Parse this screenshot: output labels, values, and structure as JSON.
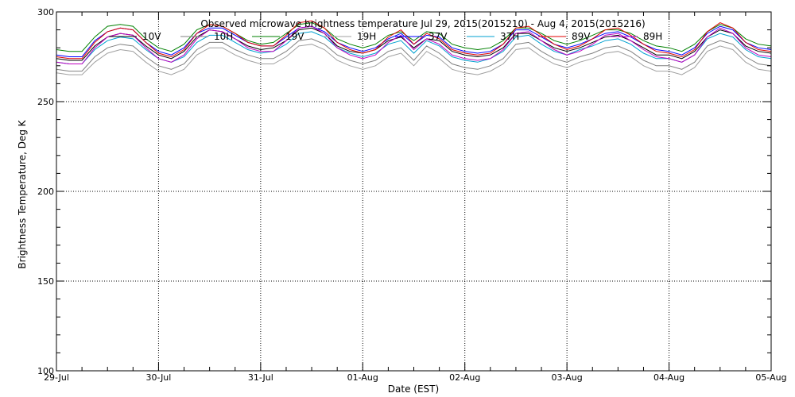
{
  "chart_data": {
    "type": "line",
    "title": "Observed microwave brightness temperature Jul 29, 2015(2015210) - Aug  4, 2015(2015216)",
    "xlabel": "Date (EST)",
    "ylabel": "Brightness Temperature, Deg K",
    "xlim": [
      0,
      7
    ],
    "ylim": [
      100,
      300
    ],
    "x_tick_labels": [
      "29-Jul",
      "30-Jul",
      "31-Jul",
      "01-Aug",
      "02-Aug",
      "03-Aug",
      "04-Aug",
      "05-Aug"
    ],
    "y_ticks": [
      100,
      150,
      200,
      250,
      300
    ],
    "grid": true,
    "legend_position": "top",
    "x": [
      0,
      0.125,
      0.25,
      0.375,
      0.5,
      0.625,
      0.75,
      0.875,
      1.0,
      1.125,
      1.25,
      1.375,
      1.5,
      1.625,
      1.75,
      1.875,
      2.0,
      2.125,
      2.25,
      2.375,
      2.5,
      2.625,
      2.75,
      2.875,
      3.0,
      3.125,
      3.25,
      3.375,
      3.5,
      3.625,
      3.75,
      3.875,
      4.0,
      4.125,
      4.25,
      4.375,
      4.5,
      4.625,
      4.75,
      4.875,
      5.0,
      5.125,
      5.25,
      5.375,
      5.5,
      5.625,
      5.75,
      5.875,
      6.0,
      6.125,
      6.25,
      6.375,
      6.5,
      6.625,
      6.75,
      6.875,
      7.0
    ],
    "series": [
      {
        "name": "10V",
        "color": "#000000",
        "values": [
          274,
          273,
          273,
          281,
          286,
          288,
          287,
          281,
          276,
          274,
          278,
          286,
          290,
          289,
          285,
          281,
          279,
          280,
          284,
          290,
          291,
          288,
          281,
          278,
          277,
          279,
          284,
          286,
          280,
          285,
          284,
          278,
          276,
          275,
          276,
          280,
          288,
          288,
          284,
          280,
          278,
          280,
          283,
          286,
          287,
          284,
          280,
          276,
          276,
          274,
          278,
          286,
          290,
          288,
          281,
          278,
          277
        ]
      },
      {
        "name": "10H",
        "color": "#808080",
        "values": [
          268,
          267,
          267,
          275,
          280,
          282,
          281,
          275,
          270,
          268,
          271,
          279,
          283,
          283,
          279,
          276,
          274,
          274,
          278,
          284,
          285,
          282,
          276,
          273,
          271,
          273,
          278,
          280,
          273,
          281,
          277,
          271,
          269,
          268,
          270,
          274,
          282,
          283,
          278,
          274,
          272,
          275,
          277,
          280,
          281,
          278,
          273,
          270,
          270,
          268,
          272,
          281,
          284,
          282,
          275,
          271,
          270
        ]
      },
      {
        "name": "19V",
        "color": "#008000",
        "values": [
          279,
          278,
          278,
          286,
          292,
          293,
          292,
          285,
          280,
          278,
          282,
          290,
          293,
          292,
          288,
          284,
          282,
          283,
          288,
          293,
          294,
          291,
          285,
          282,
          280,
          282,
          287,
          289,
          284,
          289,
          288,
          282,
          280,
          279,
          280,
          284,
          291,
          291,
          288,
          284,
          282,
          284,
          287,
          290,
          290,
          288,
          284,
          281,
          280,
          278,
          282,
          289,
          293,
          291,
          285,
          282,
          281
        ]
      },
      {
        "name": "19H",
        "color": "#a0a0a0",
        "values": [
          266,
          265,
          265,
          272,
          277,
          279,
          278,
          272,
          267,
          265,
          268,
          276,
          280,
          280,
          276,
          273,
          271,
          271,
          275,
          281,
          282,
          279,
          273,
          270,
          268,
          270,
          275,
          277,
          270,
          278,
          274,
          268,
          266,
          265,
          267,
          271,
          279,
          280,
          275,
          271,
          269,
          272,
          274,
          277,
          278,
          275,
          270,
          267,
          267,
          265,
          269,
          278,
          281,
          279,
          272,
          268,
          267
        ]
      },
      {
        "name": "37V",
        "color": "#0000ff",
        "values": [
          276,
          275,
          275,
          284,
          289,
          291,
          290,
          283,
          278,
          276,
          280,
          288,
          291,
          291,
          287,
          283,
          281,
          281,
          286,
          291,
          292,
          289,
          283,
          280,
          278,
          280,
          285,
          288,
          282,
          287,
          286,
          280,
          278,
          277,
          278,
          282,
          290,
          290,
          286,
          282,
          280,
          282,
          285,
          288,
          289,
          286,
          282,
          279,
          278,
          276,
          280,
          288,
          292,
          290,
          283,
          280,
          279
        ]
      },
      {
        "name": "37H",
        "color": "#00a0d0",
        "values": [
          272,
          271,
          271,
          279,
          284,
          286,
          285,
          279,
          274,
          272,
          275,
          283,
          287,
          287,
          283,
          279,
          277,
          278,
          282,
          288,
          289,
          286,
          280,
          277,
          275,
          277,
          282,
          284,
          277,
          284,
          281,
          275,
          273,
          272,
          274,
          278,
          286,
          287,
          282,
          278,
          276,
          279,
          281,
          284,
          285,
          282,
          277,
          274,
          274,
          272,
          276,
          285,
          288,
          286,
          279,
          275,
          274
        ]
      },
      {
        "name": "89V",
        "color": "#e00000",
        "values": [
          275,
          274,
          274,
          283,
          289,
          291,
          290,
          283,
          277,
          275,
          279,
          288,
          293,
          292,
          288,
          283,
          281,
          281,
          287,
          294,
          295,
          291,
          283,
          279,
          277,
          279,
          286,
          290,
          282,
          288,
          285,
          279,
          277,
          276,
          277,
          282,
          291,
          292,
          287,
          282,
          279,
          281,
          285,
          290,
          291,
          287,
          282,
          278,
          277,
          275,
          279,
          289,
          294,
          291,
          283,
          279,
          278
        ]
      },
      {
        "name": "89H",
        "color": "#c000c0",
        "values": [
          272,
          271,
          271,
          280,
          286,
          288,
          287,
          280,
          274,
          272,
          276,
          285,
          290,
          289,
          285,
          280,
          278,
          278,
          284,
          291,
          292,
          288,
          280,
          276,
          274,
          276,
          283,
          287,
          279,
          285,
          282,
          276,
          274,
          273,
          274,
          279,
          288,
          289,
          284,
          279,
          276,
          278,
          282,
          287,
          288,
          284,
          279,
          275,
          274,
          272,
          276,
          286,
          291,
          288,
          280,
          276,
          275
        ]
      }
    ]
  }
}
